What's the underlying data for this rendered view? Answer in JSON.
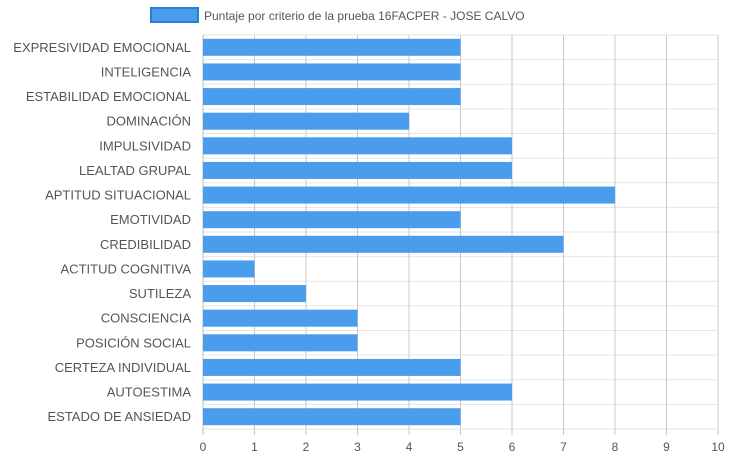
{
  "chart_data": {
    "type": "bar",
    "orientation": "horizontal",
    "categories": [
      "EXPRESIVIDAD EMOCIONAL",
      "INTELIGENCIA",
      "ESTABILIDAD EMOCIONAL",
      "DOMINACIÓN",
      "IMPULSIVIDAD",
      "LEALTAD GRUPAL",
      "APTITUD SITUACIONAL",
      "EMOTIVIDAD",
      "CREDIBILIDAD",
      "ACTITUD COGNITIVA",
      "SUTILEZA",
      "CONSCIENCIA",
      "POSICIÓN SOCIAL",
      "CERTEZA INDIVIDUAL",
      "AUTOESTIMA",
      "ESTADO DE ANSIEDAD"
    ],
    "series": [
      {
        "name": "Puntaje por criterio de la prueba 16FACPER - JOSE CALVO",
        "values": [
          5,
          5,
          5,
          4,
          6,
          6,
          8,
          5,
          7,
          1,
          2,
          3,
          3,
          5,
          6,
          5
        ],
        "color": "#4a9cec",
        "border_color": "#2a7fd4"
      }
    ],
    "x_ticks": [
      "0",
      "1",
      "2",
      "3",
      "4",
      "5",
      "6",
      "7",
      "8",
      "9",
      "10"
    ],
    "xlim": [
      0,
      10
    ],
    "grid": true,
    "legend_position": "top-center"
  }
}
